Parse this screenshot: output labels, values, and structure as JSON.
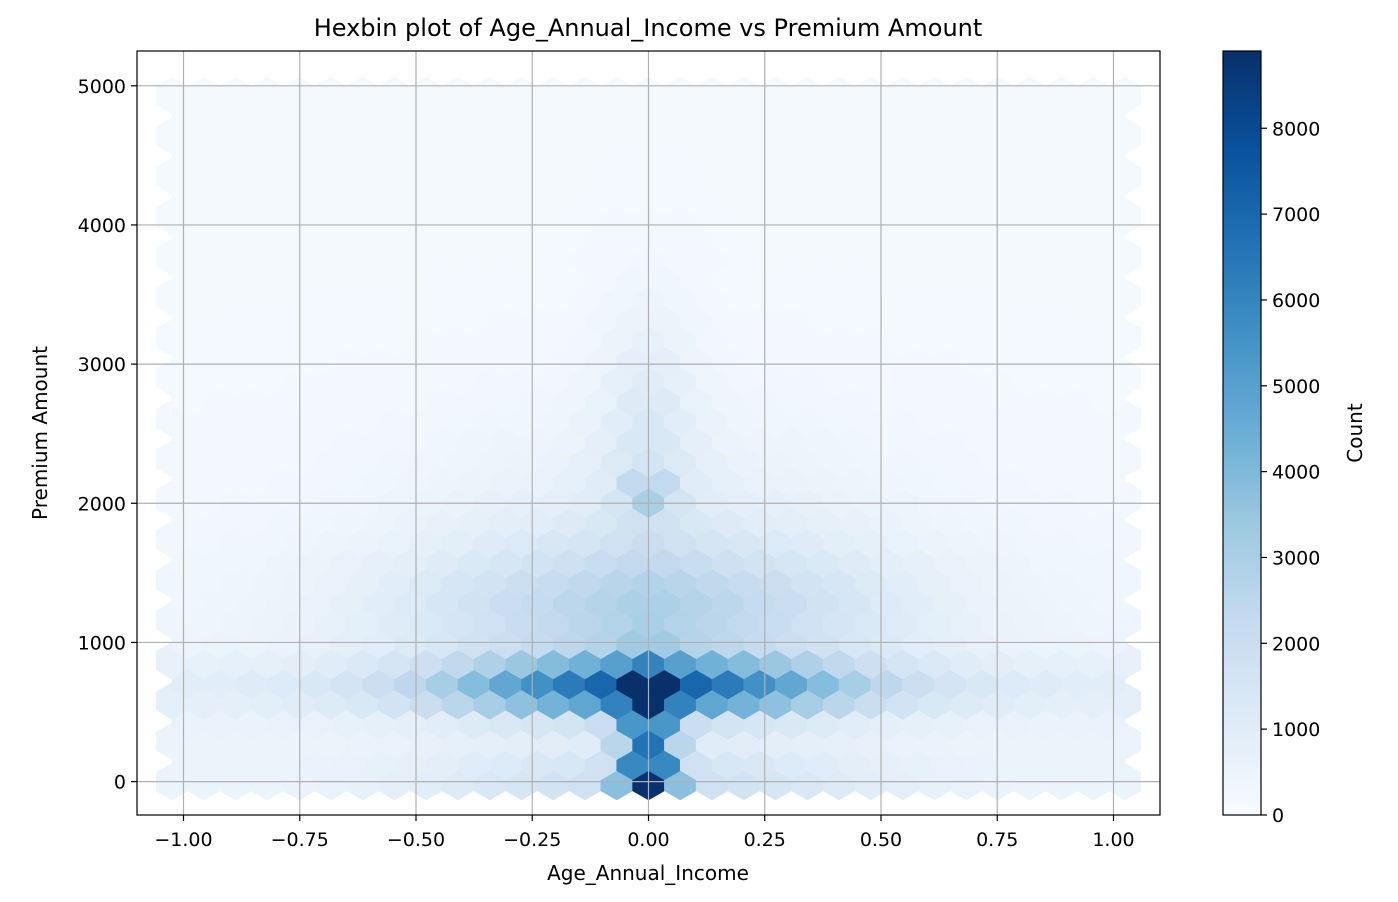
{
  "chart_data": {
    "type": "heatmap",
    "subtype": "hexbin",
    "title": "Hexbin plot of Age_Annual_Income vs Premium Amount",
    "xlabel": "Age_Annual_Income",
    "ylabel": "Premium Amount",
    "xlim": [
      -1.1,
      1.1
    ],
    "ylim": [
      -240,
      5250
    ],
    "grid": true,
    "colormap": "Blues",
    "hex_grid": {
      "x_center": 0.0,
      "x_step": 0.0683,
      "y_origin": 0,
      "y_step": 145,
      "x_range": [
        -1.0,
        1.0
      ],
      "y_range": [
        0,
        5000
      ]
    },
    "density_model": {
      "description": "Approximate density of hexbin counts estimated from the colour intensity",
      "max_count": 8900,
      "hotspots": [
        {
          "x": 0.0,
          "y": 0,
          "count": 8800
        },
        {
          "x": 0.0,
          "y": 650,
          "count": 8900
        },
        {
          "x": 0.0,
          "y": 2100,
          "count": 3800
        }
      ]
    },
    "xticks": [
      {
        "value": -1.0,
        "label": "−1.00"
      },
      {
        "value": -0.75,
        "label": "−0.75"
      },
      {
        "value": -0.5,
        "label": "−0.50"
      },
      {
        "value": -0.25,
        "label": "−0.25"
      },
      {
        "value": 0.0,
        "label": "0.00"
      },
      {
        "value": 0.25,
        "label": "0.25"
      },
      {
        "value": 0.5,
        "label": "0.50"
      },
      {
        "value": 0.75,
        "label": "0.75"
      },
      {
        "value": 1.0,
        "label": "1.00"
      }
    ],
    "yticks": [
      {
        "value": 0,
        "label": "0"
      },
      {
        "value": 1000,
        "label": "1000"
      },
      {
        "value": 2000,
        "label": "2000"
      },
      {
        "value": 3000,
        "label": "3000"
      },
      {
        "value": 4000,
        "label": "4000"
      },
      {
        "value": 5000,
        "label": "5000"
      }
    ],
    "colorbar": {
      "label": "Count",
      "min": 0,
      "max": 8900,
      "ticks": [
        {
          "value": 0,
          "label": "0"
        },
        {
          "value": 1000,
          "label": "1000"
        },
        {
          "value": 2000,
          "label": "2000"
        },
        {
          "value": 3000,
          "label": "3000"
        },
        {
          "value": 4000,
          "label": "4000"
        },
        {
          "value": 5000,
          "label": "5000"
        },
        {
          "value": 6000,
          "label": "6000"
        },
        {
          "value": 7000,
          "label": "7000"
        },
        {
          "value": 8000,
          "label": "8000"
        }
      ]
    }
  }
}
